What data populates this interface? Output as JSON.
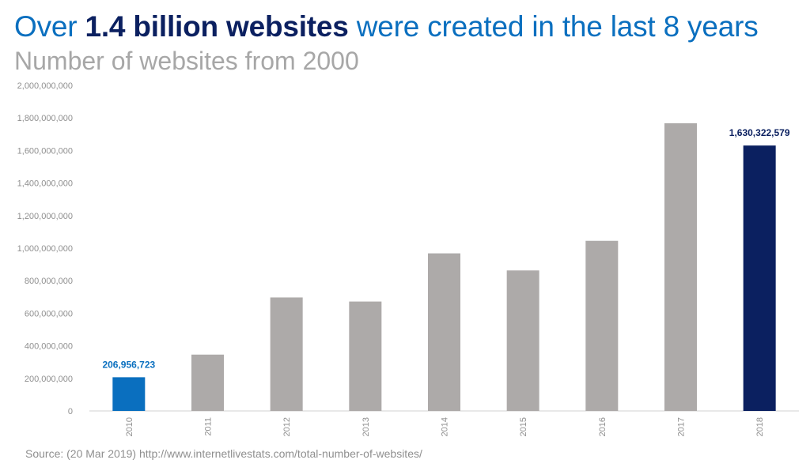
{
  "headline": {
    "part1": "Over ",
    "part2": "1.4 billion websites",
    "part3": " were created in the last 8 years"
  },
  "subtitle": "Number of websites from 2000",
  "source": "Source: (20 Mar 2019) http://www.internetlivestats.com/total-number-of-websites/",
  "colors": {
    "highlight_first": "#0a6fbf",
    "highlight_last": "#0b2060",
    "bar_default": "#adaaa9",
    "axis": "#d0d0d0",
    "tick_text": "#8f8f8f"
  },
  "chart_data": {
    "type": "bar",
    "title": "",
    "xlabel": "",
    "ylabel": "",
    "categories": [
      "2010",
      "2011",
      "2012",
      "2013",
      "2014",
      "2015",
      "2016",
      "2017",
      "2018"
    ],
    "values": [
      206956723,
      346000000,
      697000000,
      672000000,
      968000000,
      863000000,
      1045000000,
      1767000000,
      1630322579
    ],
    "ylim": [
      0,
      2000000000
    ],
    "yticks": [
      0,
      200000000,
      400000000,
      600000000,
      800000000,
      1000000000,
      1200000000,
      1400000000,
      1600000000,
      1800000000,
      2000000000
    ],
    "ytick_labels": [
      "0",
      "200,000,000",
      "400,000,000",
      "600,000,000",
      "800,000,000",
      "1,000,000,000",
      "1,200,000,000",
      "1,400,000,000",
      "1,600,000,000",
      "1,800,000,000",
      "2,000,000,000"
    ],
    "data_labels": [
      {
        "index": 0,
        "text": "206,956,723",
        "color": "#0a6fbf"
      },
      {
        "index": 8,
        "text": "1,630,322,579",
        "color": "#0b2060"
      }
    ],
    "bar_colors": [
      "#0a6fbf",
      "#adaaa9",
      "#adaaa9",
      "#adaaa9",
      "#adaaa9",
      "#adaaa9",
      "#adaaa9",
      "#adaaa9",
      "#0b2060"
    ],
    "grid": false,
    "legend": "none"
  }
}
